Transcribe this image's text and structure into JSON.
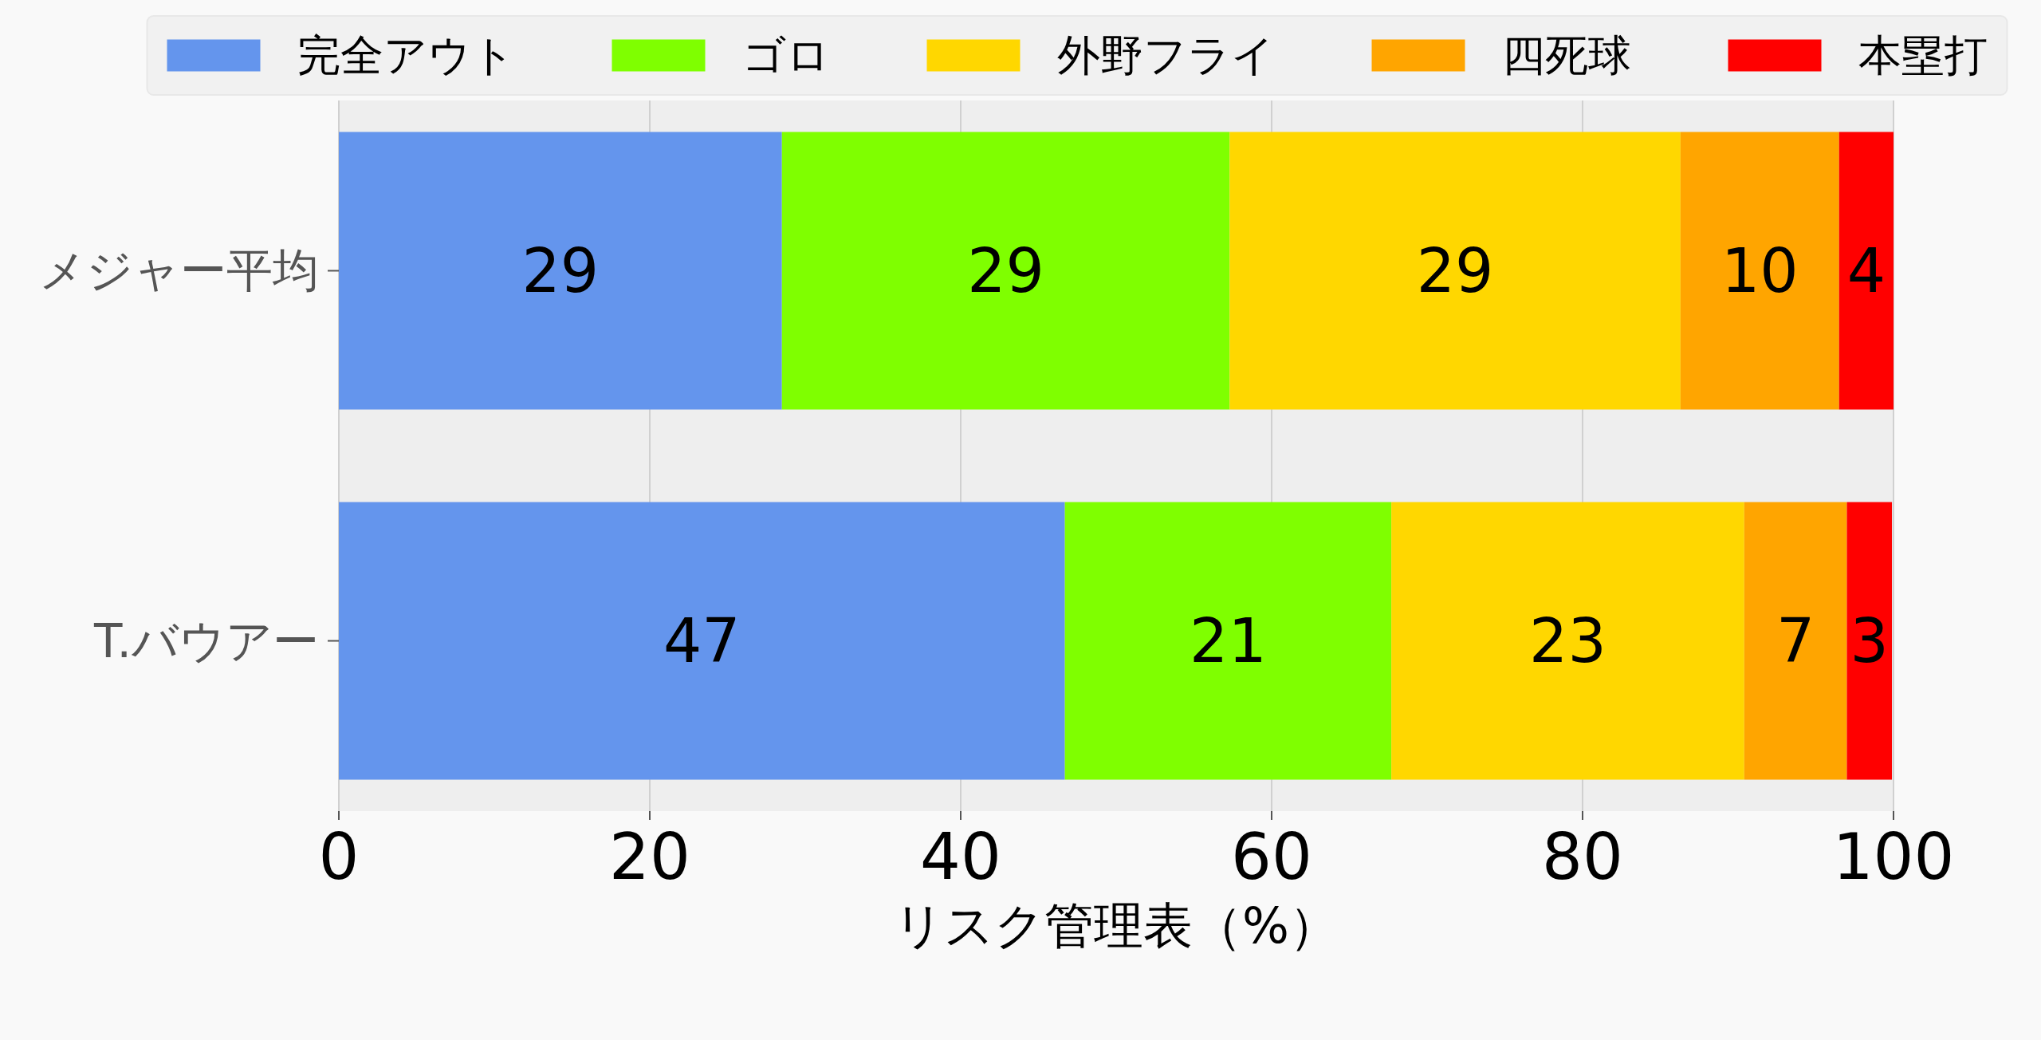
{
  "chart_data": {
    "type": "bar",
    "orientation": "horizontal",
    "stacked": true,
    "categories": [
      "メジャー平均",
      "T.バウアー"
    ],
    "series": [
      {
        "name": "完全アウト",
        "color": "#6495ed",
        "values": [
          28.5,
          46.7
        ],
        "value_labels": [
          "29",
          "47"
        ]
      },
      {
        "name": "ゴロ",
        "color": "#7fff00",
        "values": [
          28.8,
          21.0
        ],
        "value_labels": [
          "29",
          "21"
        ]
      },
      {
        "name": "外野フライ",
        "color": "#ffd700",
        "values": [
          29.0,
          22.7
        ],
        "value_labels": [
          "29",
          "23"
        ]
      },
      {
        "name": "四死球",
        "color": "#ffa500",
        "values": [
          10.2,
          6.6
        ],
        "value_labels": [
          "10",
          "7"
        ]
      },
      {
        "name": "本塁打",
        "color": "#ff0000",
        "values": [
          3.5,
          2.9
        ],
        "value_labels": [
          "4",
          "3"
        ]
      }
    ],
    "xlim": [
      0,
      100
    ],
    "xticks": [
      0,
      20,
      40,
      60,
      80,
      100
    ],
    "xlabel": "リスク管理表（%）",
    "grid": "x",
    "legend": "top"
  }
}
